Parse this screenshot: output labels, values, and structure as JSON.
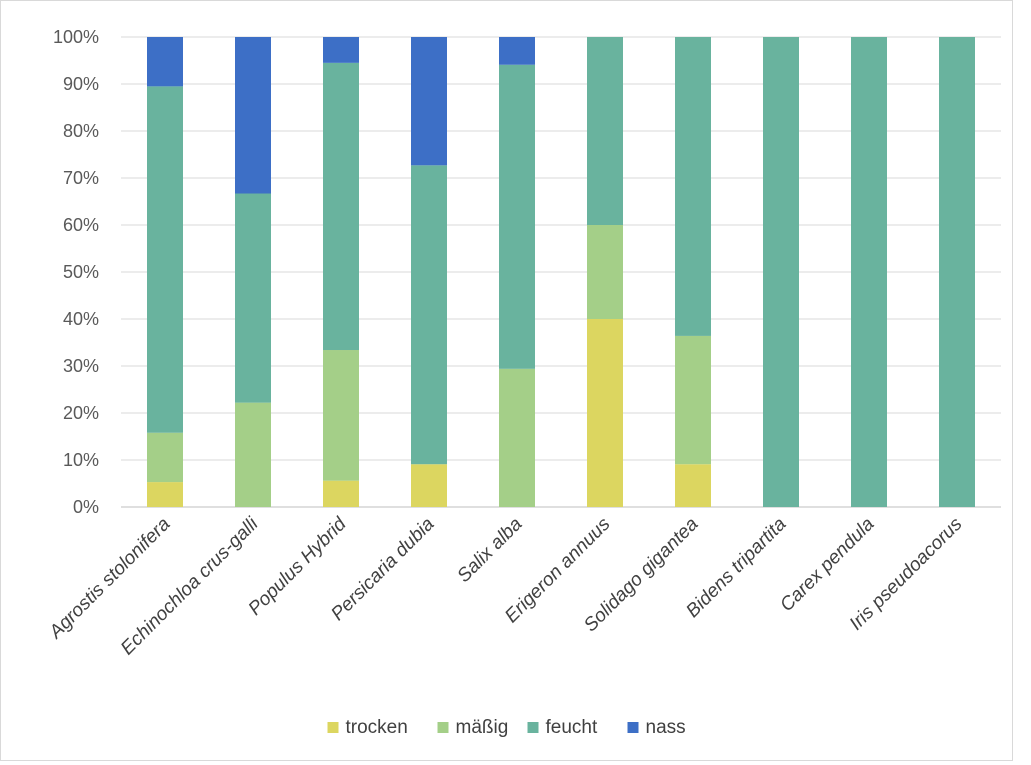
{
  "chart_data": {
    "type": "bar",
    "stacked": true,
    "percent": true,
    "title": "",
    "xlabel": "",
    "ylabel": "",
    "ylim": [
      0,
      100
    ],
    "yticks": [
      "0%",
      "10%",
      "20%",
      "30%",
      "40%",
      "50%",
      "60%",
      "70%",
      "80%",
      "90%",
      "100%"
    ],
    "grid": true,
    "legend_position": "bottom",
    "categories": [
      "Agrostis stolonifera",
      "Echinochloa crus-galli",
      "Populus Hybrid",
      "Persicaria dubia",
      "Salix alba",
      "Erigeron annuus",
      "Solidago gigantea",
      "Bidens tripartita",
      "Carex pendula",
      "Iris pseudoacorus"
    ],
    "series": [
      {
        "name": "trocken",
        "color": "#dcd660",
        "values": [
          5.3,
          0,
          5.6,
          9.1,
          0,
          40,
          9.1,
          0,
          0,
          0
        ]
      },
      {
        "name": "mäßig",
        "color": "#a4cf88",
        "values": [
          10.5,
          22.2,
          27.8,
          0,
          29.4,
          20,
          27.3,
          0,
          0,
          0
        ]
      },
      {
        "name": "feucht",
        "color": "#69b39e",
        "values": [
          73.7,
          44.5,
          61.1,
          63.6,
          64.7,
          40,
          63.6,
          100,
          100,
          100
        ]
      },
      {
        "name": "nass",
        "color": "#3d6fc6",
        "values": [
          10.5,
          33.3,
          5.5,
          27.3,
          5.9,
          0,
          0,
          0,
          0,
          0
        ]
      }
    ]
  }
}
